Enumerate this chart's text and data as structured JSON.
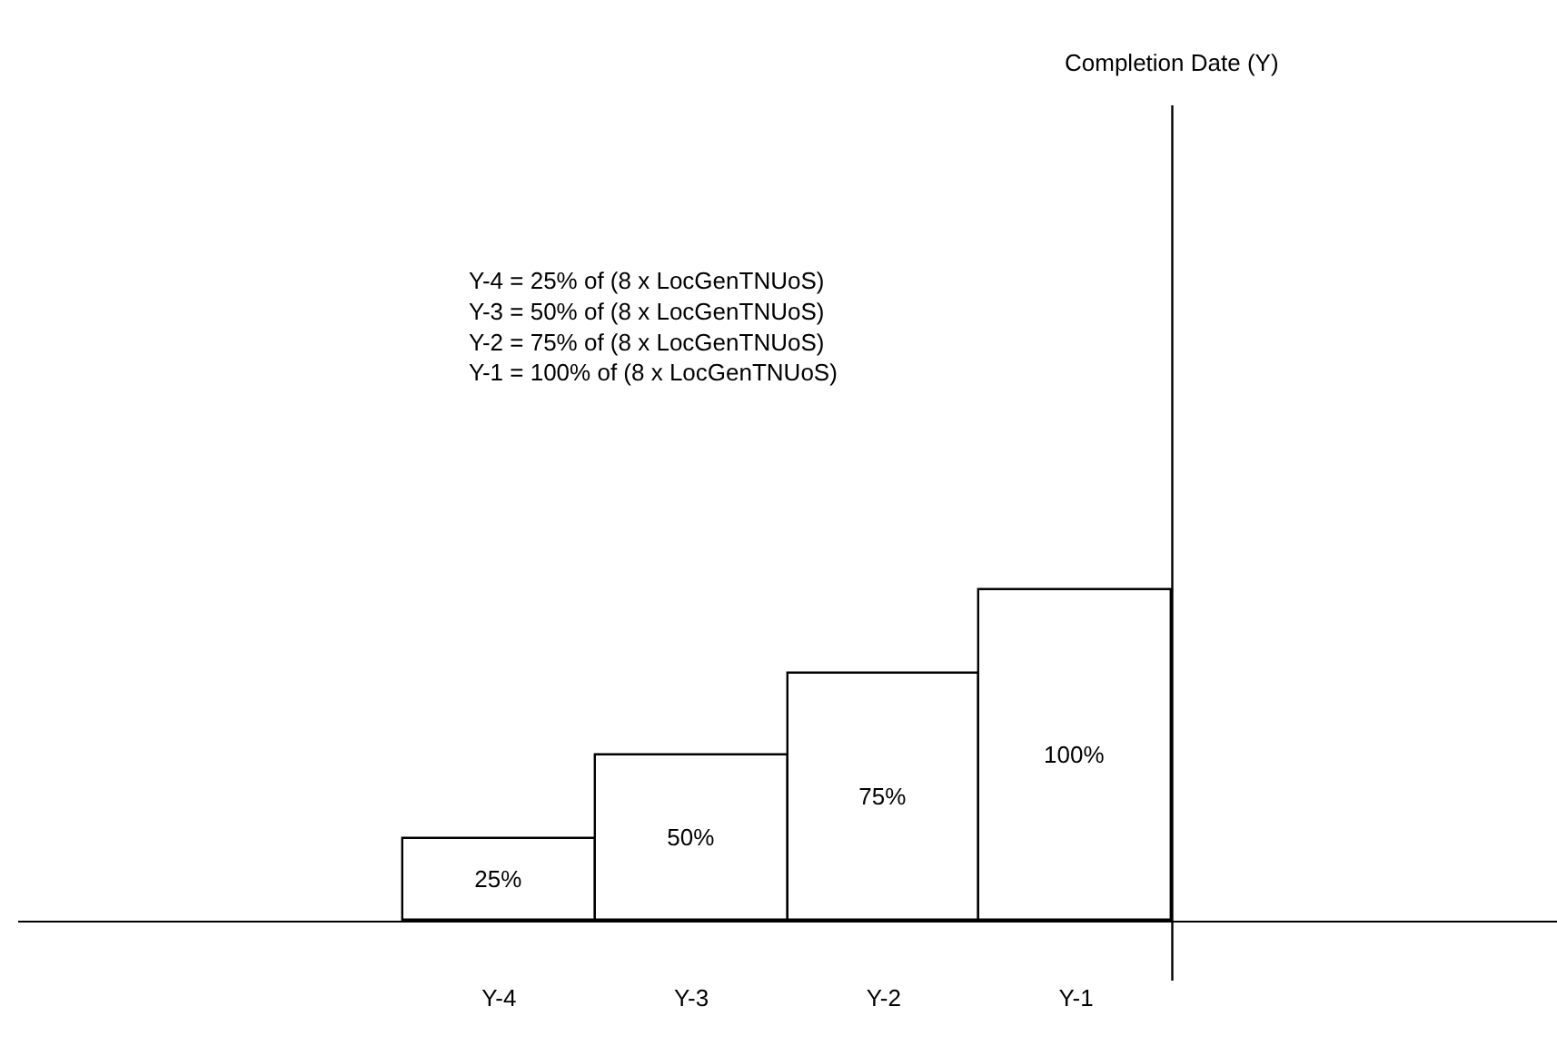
{
  "chart_data": {
    "type": "bar",
    "categories": [
      null,
      null,
      "Y-4",
      "Y-3",
      "Y-2",
      "Y-1",
      null,
      null
    ],
    "values": [
      null,
      null,
      25,
      50,
      75,
      100,
      null,
      null
    ],
    "value_labels": [
      null,
      null,
      "25%",
      "50%",
      "75%",
      "100%",
      null,
      null
    ],
    "color": "#ffffff",
    "ylim": [
      -18,
      247
    ],
    "tick_labels": "x",
    "legend": false,
    "annotations": [
      "Completion Date (Y)",
      "Y-4 = 25% of (8 x LocGenTNUoS)\nY-3 = 50% of (8 x LocGenTNUoS)\nY-2 = 75% of (8 x LocGenTNUoS)\nY-1 = 100% of (8 x LocGenTNUoS)"
    ]
  }
}
